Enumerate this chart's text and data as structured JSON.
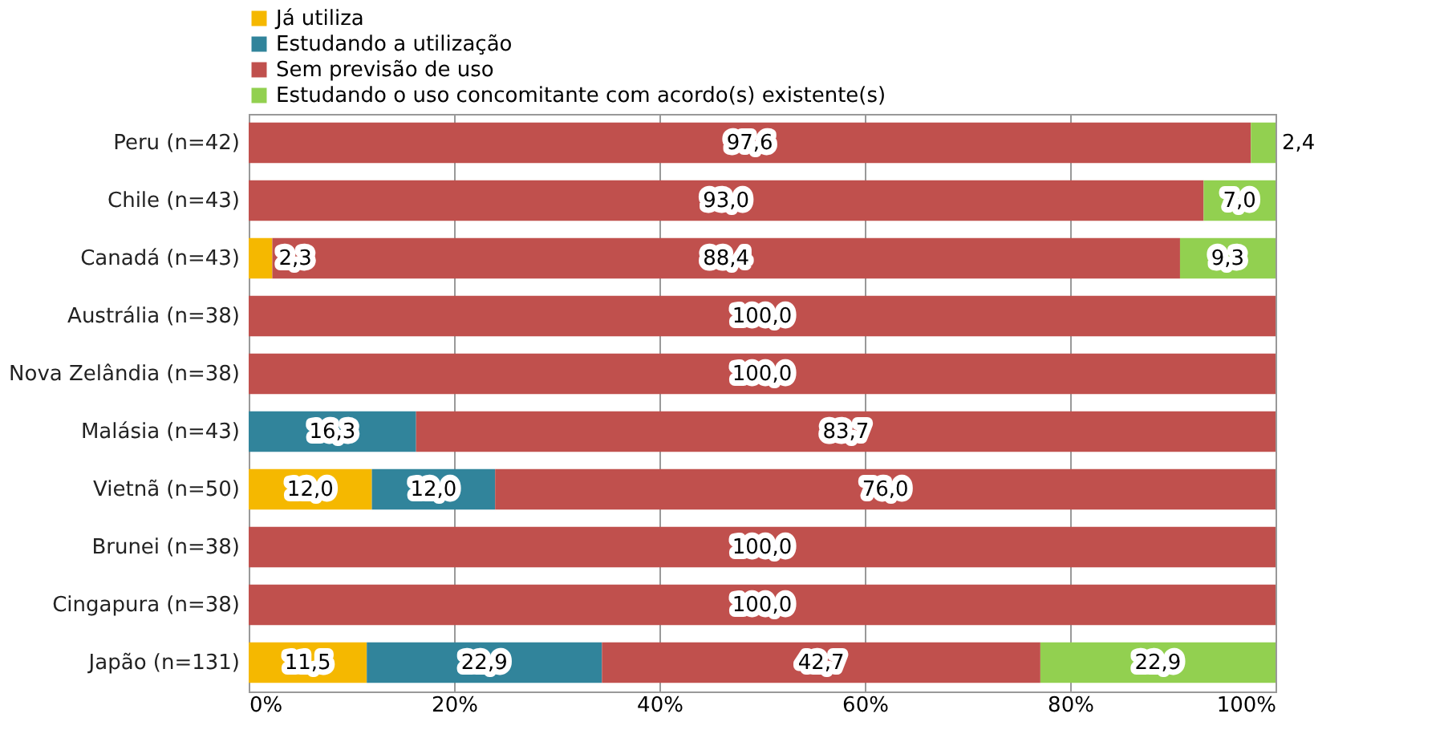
{
  "chart_data": {
    "type": "bar",
    "orientation": "horizontal",
    "stacked": true,
    "categories": [
      "Peru (n=42)",
      "Chile (n=43)",
      "Canadá (n=43)",
      "Austrália (n=38)",
      "Nova Zelândia (n=38)",
      "Malásia (n=43)",
      "Vietnã (n=50)",
      "Brunei (n=38)",
      "Cingapura (n=38)",
      "Japão (n=131)"
    ],
    "series": [
      {
        "name": "Já utiliza",
        "color": "#f5b800",
        "values": [
          null,
          null,
          2.3,
          null,
          null,
          null,
          12.0,
          null,
          null,
          11.5
        ],
        "value_labels": [
          null,
          null,
          "2,3",
          null,
          null,
          null,
          "12,0",
          null,
          null,
          "11,5"
        ]
      },
      {
        "name": "Estudando a utilização",
        "color": "#31849b",
        "values": [
          null,
          null,
          null,
          null,
          null,
          16.3,
          12.0,
          null,
          null,
          22.9
        ],
        "value_labels": [
          null,
          null,
          null,
          null,
          null,
          "16,3",
          "12,0",
          null,
          null,
          "22,9"
        ]
      },
      {
        "name": "Sem previsão de uso",
        "color": "#c0504d",
        "values": [
          97.6,
          93.0,
          88.4,
          100.0,
          100.0,
          83.7,
          76.0,
          100.0,
          100.0,
          42.7
        ],
        "value_labels": [
          "97,6",
          "93,0",
          "88,4",
          "100,0",
          "100,0",
          "83,7",
          "76,0",
          "100,0",
          "100,0",
          "42,7"
        ]
      },
      {
        "name": "Estudando o uso concomitante com acordo(s) existente(s)",
        "color": "#92d050",
        "values": [
          2.4,
          7.0,
          9.3,
          null,
          null,
          null,
          null,
          null,
          null,
          22.9
        ],
        "value_labels": [
          "2,4",
          "7,0",
          "9,3",
          null,
          null,
          null,
          null,
          null,
          null,
          "22,9"
        ]
      }
    ],
    "xlim": [
      0,
      100
    ],
    "xticks": [
      {
        "value": 0,
        "label": "0%"
      },
      {
        "value": 20,
        "label": "20%"
      },
      {
        "value": 40,
        "label": "40%"
      },
      {
        "value": 60,
        "label": "60%"
      },
      {
        "value": 80,
        "label": "80%"
      },
      {
        "value": 100,
        "label": "100%"
      }
    ],
    "grid": "x",
    "legend": "top left"
  }
}
